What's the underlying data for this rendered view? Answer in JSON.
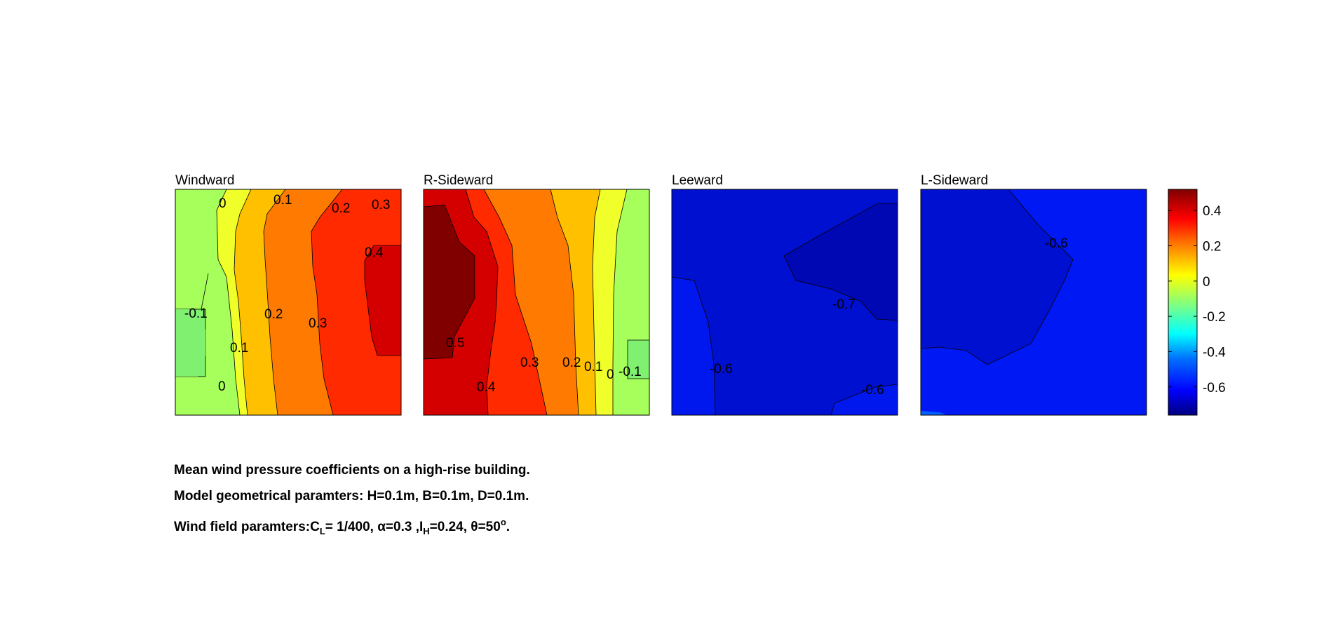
{
  "chart_data": [
    {
      "type": "contour",
      "title": "Windward",
      "contour_levels": [
        -0.1,
        0,
        0.1,
        0.2,
        0.3,
        0.4
      ],
      "contour_labels": [
        "0",
        "0.1",
        "0.2",
        "0.3",
        "0.4",
        "-0.1",
        "0.2",
        "0.3",
        "0.1",
        "0"
      ],
      "value_range": [
        -0.1,
        0.45
      ]
    },
    {
      "type": "contour",
      "title": "R-Sideward",
      "contour_levels": [
        -0.1,
        0,
        0.1,
        0.2,
        0.3,
        0.4,
        0.5
      ],
      "contour_labels": [
        "0.5",
        "0.3",
        "0.2",
        "0.1",
        "0",
        "-0.1",
        "0.4"
      ],
      "value_range": [
        -0.1,
        0.52
      ]
    },
    {
      "type": "contour",
      "title": "Leeward",
      "contour_levels": [
        -0.7,
        -0.6
      ],
      "contour_labels": [
        "-0.7",
        "-0.6",
        "-0.6"
      ],
      "value_range": [
        -0.75,
        -0.55
      ]
    },
    {
      "type": "contour",
      "title": "L-Sideward",
      "contour_levels": [
        -0.6
      ],
      "contour_labels": [
        "-0.6"
      ],
      "value_range": [
        -0.7,
        -0.55
      ]
    }
  ],
  "colorbar": {
    "colormap": "jet",
    "range": [
      -0.76,
      0.52
    ],
    "ticks": [
      0.4,
      0.2,
      0,
      -0.2,
      -0.4,
      -0.6
    ],
    "tick_labels": [
      "0.4",
      "0.2",
      "0",
      "-0.2",
      "-0.4",
      "-0.6"
    ]
  },
  "caption": {
    "line1": "Mean wind pressure coefficients on a high-rise building.",
    "line2": "Model geometrical paramters: H=0.1m, B=0.1m, D=0.1m.",
    "line3_a": "Wind field paramters:C",
    "line3_b": "L",
    "line3_c": "= 1/400, α=0.3 ,I",
    "line3_d": "H",
    "line3_e": "=0.24, θ=50",
    "line3_f": "o",
    "line3_g": "."
  }
}
